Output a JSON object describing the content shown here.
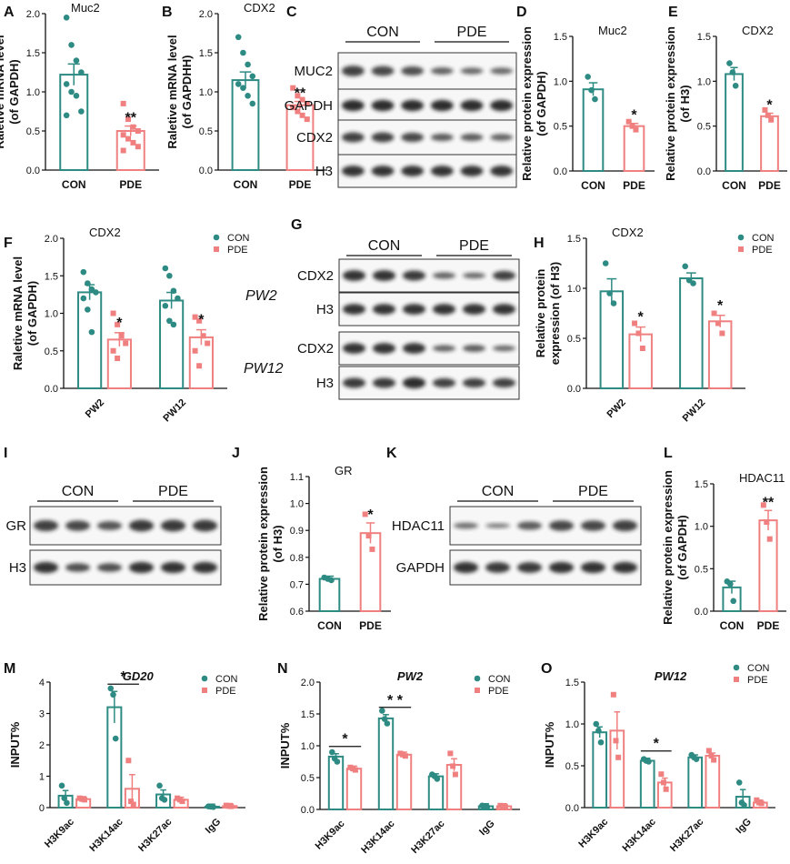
{
  "colors": {
    "con": "#2e8b83",
    "pde": "#f08080",
    "axis": "#111111",
    "band": "#1a1a1a"
  },
  "chart_data": [
    {
      "letter": "A",
      "type": "bar",
      "title": "Muc2",
      "ylabel_lines": [
        "Raletive mRNA level",
        "(of GAPDH)"
      ],
      "ylim": [
        0,
        2.0
      ],
      "yticks": [
        "0.0",
        "0.5",
        "1.0",
        "1.5",
        "2.0"
      ],
      "categories": [
        "CON",
        "PDE"
      ],
      "values": [
        1.22,
        0.5
      ],
      "points": [
        [
          1.95,
          1.6,
          1.4,
          1.25,
          1.1,
          1.0,
          0.95,
          0.75,
          0.7
        ],
        [
          0.85,
          0.65,
          0.55,
          0.5,
          0.45,
          0.4,
          0.35,
          0.3,
          0.25
        ]
      ],
      "sig": [
        "",
        "**"
      ]
    },
    {
      "letter": "B",
      "type": "bar",
      "title": "CDX2",
      "ylabel_lines": [
        "Raletive mRNA level",
        "(of GAPDHH)"
      ],
      "ylim": [
        0,
        2.0
      ],
      "yticks": [
        "0.0",
        "0.5",
        "1.0",
        "1.5",
        "2.0"
      ],
      "categories": [
        "CON",
        "PDE"
      ],
      "values": [
        1.15,
        0.83
      ],
      "points": [
        [
          1.7,
          1.5,
          1.35,
          1.2,
          1.1,
          1.05,
          0.95,
          0.85
        ],
        [
          1.05,
          0.95,
          0.9,
          0.85,
          0.8,
          0.75,
          0.7,
          0.65
        ]
      ],
      "sig": [
        "",
        "**"
      ]
    },
    {
      "letter": "D",
      "type": "bar",
      "title": "Muc2",
      "ylabel_lines": [
        "Relative protein expression",
        "(of GAPDH)"
      ],
      "ylim": [
        0,
        1.5
      ],
      "yticks": [
        "0.0",
        "0.5",
        "1.0",
        "1.5"
      ],
      "categories": [
        "CON",
        "PDE"
      ],
      "values": [
        0.91,
        0.5
      ],
      "points": [
        [
          1.05,
          0.9,
          0.8
        ],
        [
          0.55,
          0.5,
          0.46
        ]
      ],
      "sig": [
        "",
        "*"
      ]
    },
    {
      "letter": "E",
      "type": "bar",
      "title": "CDX2",
      "ylabel_lines": [
        "Relative protein expression",
        "(of H3)"
      ],
      "ylim": [
        0,
        1.5
      ],
      "yticks": [
        "0.0",
        "0.5",
        "1.0",
        "1.5"
      ],
      "categories": [
        "CON",
        "PDE"
      ],
      "values": [
        1.08,
        0.61
      ],
      "points": [
        [
          1.2,
          1.1,
          0.95
        ],
        [
          0.68,
          0.62,
          0.57
        ]
      ],
      "sig": [
        "",
        "*"
      ]
    },
    {
      "letter": "F",
      "type": "grouped_bar",
      "title": "CDX2",
      "ylabel_lines": [
        "Raletive mRNA level",
        "(of GAPDH)"
      ],
      "ylim": [
        0,
        2.0
      ],
      "yticks": [
        "0.0",
        "0.5",
        "1.0",
        "1.5",
        "2.0"
      ],
      "categories": [
        "PW2",
        "PW12"
      ],
      "series": [
        {
          "name": "CON",
          "values": [
            1.28,
            1.17
          ],
          "points": [
            [
              1.55,
              1.4,
              1.32,
              1.28,
              1.2,
              1.05,
              0.75
            ],
            [
              1.6,
              1.5,
              1.3,
              1.2,
              1.1,
              0.9,
              0.85
            ]
          ]
        },
        {
          "name": "PDE",
          "values": [
            0.65,
            0.68
          ],
          "points": [
            [
              1.0,
              0.85,
              0.7,
              0.6,
              0.5,
              0.4
            ],
            [
              0.95,
              0.9,
              0.7,
              0.6,
              0.5,
              0.3
            ]
          ]
        }
      ],
      "sig": [
        [
          "",
          "*"
        ],
        [
          "",
          "*"
        ]
      ]
    },
    {
      "letter": "H",
      "type": "grouped_bar",
      "title": "CDX2",
      "ylabel_lines": [
        "Relative protein",
        "expression (of H3)"
      ],
      "ylim": [
        0,
        1.5
      ],
      "yticks": [
        "0.0",
        "0.5",
        "1.0",
        "1.5"
      ],
      "categories": [
        "PW2",
        "PW12"
      ],
      "series": [
        {
          "name": "CON",
          "values": [
            0.97,
            1.1
          ],
          "points": [
            [
              1.25,
              0.95,
              0.85
            ],
            [
              1.22,
              1.08,
              1.05
            ]
          ]
        },
        {
          "name": "PDE",
          "values": [
            0.54,
            0.67
          ],
          "points": [
            [
              0.65,
              0.55,
              0.4
            ],
            [
              0.75,
              0.65,
              0.55
            ]
          ]
        }
      ],
      "sig": [
        [
          "",
          "*"
        ],
        [
          "",
          "*"
        ]
      ]
    },
    {
      "letter": "J",
      "type": "bar",
      "title": "GR",
      "ylabel_lines": [
        "Relative protein expression",
        "(of H3)"
      ],
      "ylim": [
        0.6,
        1.1
      ],
      "yticks": [
        "0.6",
        "0.7",
        "0.8",
        "0.9",
        "1.0",
        "1.1"
      ],
      "categories": [
        "CON",
        "PDE"
      ],
      "values": [
        0.72,
        0.89
      ],
      "points": [
        [
          0.725,
          0.72,
          0.715
        ],
        [
          0.96,
          0.88,
          0.83
        ]
      ],
      "sig": [
        "",
        "*"
      ]
    },
    {
      "letter": "L",
      "type": "bar",
      "title": "HDAC11",
      "ylabel_lines": [
        "Relative protein expression",
        "(of GAPDH)"
      ],
      "ylim": [
        0,
        1.5
      ],
      "yticks": [
        "0.0",
        "0.5",
        "1.0",
        "1.5"
      ],
      "categories": [
        "CON",
        "PDE"
      ],
      "values": [
        0.28,
        1.07
      ],
      "points": [
        [
          0.35,
          0.32,
          0.12
        ],
        [
          1.25,
          1.05,
          0.85
        ]
      ],
      "sig": [
        "",
        "**"
      ]
    },
    {
      "letter": "M",
      "type": "grouped_bar",
      "title": "GD20",
      "ylabel_lines": [
        "INPUT%"
      ],
      "ylim": [
        0,
        4
      ],
      "yticks": [
        "0",
        "1",
        "2",
        "3",
        "4"
      ],
      "categories": [
        "H3K9ac",
        "H3K14ac",
        "H3K27ac",
        "IgG"
      ],
      "series": [
        {
          "name": "CON",
          "values": [
            0.38,
            3.2,
            0.42,
            0.03
          ],
          "points": [
            [
              0.7,
              0.3,
              0.15
            ],
            [
              3.8,
              3.6,
              2.2
            ],
            [
              0.7,
              0.3,
              0.25
            ],
            [
              0.04,
              0.03,
              0.02
            ]
          ]
        },
        {
          "name": "PDE",
          "values": [
            0.27,
            0.6,
            0.25,
            0.05
          ],
          "points": [
            [
              0.3,
              0.27,
              0.25
            ],
            [
              1.5,
              0.2,
              0.1
            ],
            [
              0.3,
              0.25,
              0.2
            ],
            [
              0.07,
              0.05,
              0.04
            ]
          ]
        }
      ],
      "brackets": [
        {
          "category": 1,
          "label": "*"
        }
      ]
    },
    {
      "letter": "N",
      "type": "grouped_bar",
      "title": "PW2",
      "ylabel_lines": [
        "INPUT%"
      ],
      "ylim": [
        0,
        2.0
      ],
      "yticks": [
        "0.0",
        "0.5",
        "1.0",
        "1.5",
        "2.0"
      ],
      "categories": [
        "H3K9ac",
        "H3K14ac",
        "H3K27ac",
        "IgG"
      ],
      "series": [
        {
          "name": "CON",
          "values": [
            0.83,
            1.43,
            0.52,
            0.05
          ],
          "points": [
            [
              0.9,
              0.8,
              0.75
            ],
            [
              1.55,
              1.42,
              1.35
            ],
            [
              0.55,
              0.52,
              0.48
            ],
            [
              0.06,
              0.05,
              0.04
            ]
          ]
        },
        {
          "name": "PDE",
          "values": [
            0.64,
            0.86,
            0.7,
            0.05
          ],
          "points": [
            [
              0.66,
              0.64,
              0.62
            ],
            [
              0.88,
              0.86,
              0.84
            ],
            [
              0.88,
              0.68,
              0.55
            ],
            [
              0.06,
              0.05,
              0.04
            ]
          ]
        }
      ],
      "brackets": [
        {
          "category": 0,
          "label": "*"
        },
        {
          "category": 1,
          "label": "* *"
        }
      ]
    },
    {
      "letter": "O",
      "type": "grouped_bar",
      "title": "PW12",
      "ylabel_lines": [
        "INPUT%"
      ],
      "ylim": [
        0,
        1.5
      ],
      "yticks": [
        "0.0",
        "0.5",
        "1.0",
        "1.5"
      ],
      "categories": [
        "H3K9ac",
        "H3K14ac",
        "H3K27ac",
        "IgG"
      ],
      "series": [
        {
          "name": "CON",
          "values": [
            0.9,
            0.56,
            0.6,
            0.13
          ],
          "points": [
            [
              1.0,
              0.92,
              0.78
            ],
            [
              0.58,
              0.56,
              0.55
            ],
            [
              0.63,
              0.6,
              0.58
            ],
            [
              0.3,
              0.06,
              0.03
            ]
          ]
        },
        {
          "name": "PDE",
          "values": [
            0.92,
            0.3,
            0.62,
            0.06
          ],
          "points": [
            [
              1.35,
              0.8,
              0.6
            ],
            [
              0.4,
              0.3,
              0.22
            ],
            [
              0.68,
              0.62,
              0.57
            ],
            [
              0.09,
              0.06,
              0.05
            ]
          ]
        }
      ],
      "brackets": [
        {
          "category": 1,
          "label": "*"
        }
      ]
    }
  ],
  "legend": {
    "con": "CON",
    "pde": "PDE"
  },
  "blots": {
    "C": {
      "letter": "C",
      "groups": [
        "CON",
        "PDE"
      ],
      "labels": [
        "MUC2",
        "GAPDH",
        "CDX2",
        "H3"
      ]
    },
    "G": {
      "letter": "G",
      "groups": [
        "CON",
        "PDE"
      ],
      "labels": [
        "CDX2",
        "H3",
        "CDX2",
        "H3"
      ],
      "timepoints": [
        "PW2",
        "PW12"
      ]
    },
    "I": {
      "letter": "I",
      "groups": [
        "CON",
        "PDE"
      ],
      "labels": [
        "GR",
        "H3"
      ]
    },
    "K": {
      "letter": "K",
      "groups": [
        "CON",
        "PDE"
      ],
      "labels": [
        "HDAC11",
        "GAPDH"
      ]
    }
  }
}
